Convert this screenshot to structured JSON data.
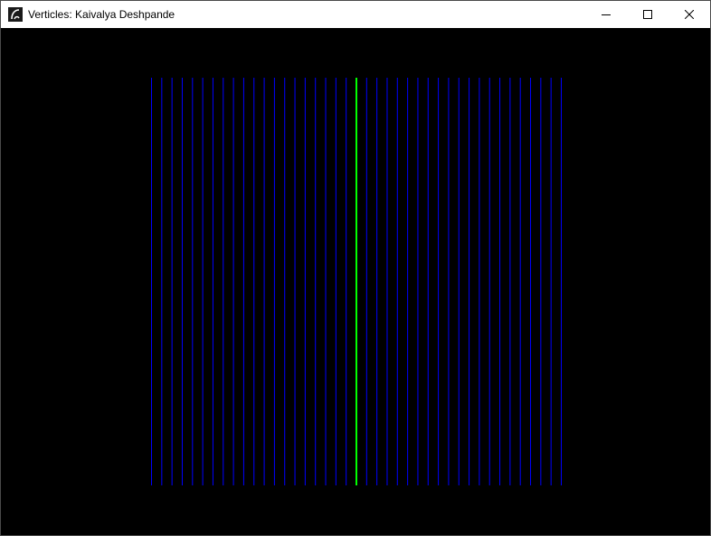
{
  "window": {
    "title": "Verticles: Kaivalya Deshpande",
    "icon": "app-icon",
    "buttons": {
      "minimize": "minimize-icon",
      "maximize": "maximize-icon",
      "close": "close-icon"
    }
  },
  "canvas": {
    "background": "#000000",
    "line_color": "#0000ff",
    "highlight_color": "#00ff00",
    "line_count": 41,
    "highlight_index": 20
  }
}
